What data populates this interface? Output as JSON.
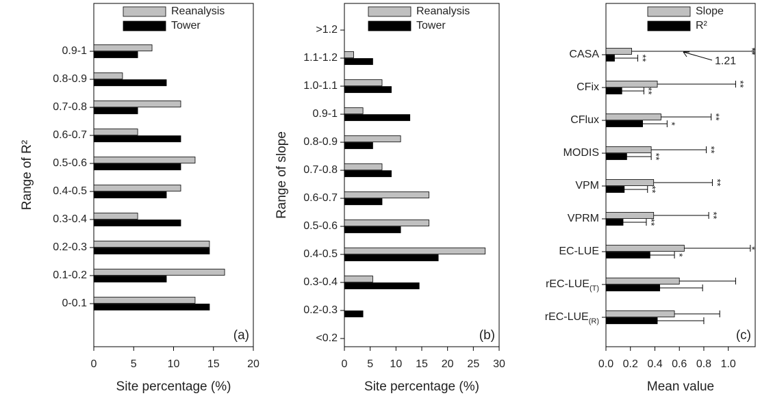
{
  "chart_data": [
    {
      "type": "bar",
      "orientation": "horizontal",
      "panel_label": "(a)",
      "xlabel": "Site percentage (%)",
      "ylabel": "Range of R²",
      "categories": [
        "0-0.1",
        "0.1-0.2",
        "0.2-0.3",
        "0.3-0.4",
        "0.4-0.5",
        "0.5-0.6",
        "0.6-0.7",
        "0.7-0.8",
        "0.8-0.9",
        "0.9-1"
      ],
      "series": [
        {
          "name": "Tower",
          "color": "#000000",
          "values": [
            14.5,
            9.1,
            14.5,
            10.9,
            9.1,
            10.9,
            10.9,
            5.5,
            9.1,
            5.5
          ]
        },
        {
          "name": "Reanalysis",
          "color": "#c0c0c0",
          "values": [
            12.7,
            16.4,
            14.5,
            5.5,
            10.9,
            12.7,
            5.5,
            10.9,
            3.6,
            7.3
          ]
        }
      ],
      "xlim": [
        0,
        20
      ],
      "xticks": [
        0,
        5,
        10,
        15,
        20
      ],
      "legend": "upper right"
    },
    {
      "type": "bar",
      "orientation": "horizontal",
      "panel_label": "(b)",
      "xlabel": "Site percentage (%)",
      "ylabel": "Range of slope",
      "categories": [
        "<0.2",
        "0.2-0.3",
        "0.3-0.4",
        "0.4-0.5",
        "0.5-0.6",
        "0.6-0.7",
        "0.7-0.8",
        "0.8-0.9",
        "0.9-1",
        "1.0-1.1",
        "1.1-1.2",
        ">1.2"
      ],
      "series": [
        {
          "name": "Tower",
          "color": "#000000",
          "values": [
            0,
            3.6,
            14.5,
            18.2,
            10.9,
            7.3,
            9.1,
            5.5,
            12.7,
            9.1,
            5.5,
            0
          ]
        },
        {
          "name": "Reanalysis",
          "color": "#c0c0c0",
          "values": [
            0,
            0,
            5.5,
            27.3,
            16.4,
            16.4,
            7.3,
            10.9,
            3.6,
            7.3,
            1.8,
            0
          ]
        }
      ],
      "xlim": [
        0,
        30
      ],
      "xticks": [
        0,
        5,
        10,
        15,
        20,
        25,
        30
      ],
      "legend": "upper right"
    },
    {
      "type": "bar",
      "orientation": "horizontal",
      "panel_label": "(c)",
      "xlabel": "Mean value",
      "categories": [
        "CASA",
        "CFix",
        "CFlux",
        "MODIS",
        "VPM",
        "VPRM",
        "EC-LUE",
        "rEC-LUE(T)",
        "rEC-LUE(R)"
      ],
      "series": [
        {
          "name": "R²",
          "color": "#000000",
          "values": [
            0.07,
            0.13,
            0.3,
            0.17,
            0.15,
            0.14,
            0.36,
            0.44,
            0.42
          ],
          "errors": [
            0.19,
            0.18,
            0.2,
            0.2,
            0.19,
            0.19,
            0.2,
            0.35,
            0.38
          ],
          "significance": [
            "**",
            "**",
            "*",
            "**",
            "**",
            "**",
            "*",
            null,
            null
          ]
        },
        {
          "name": "Slope",
          "color": "#c0c0c0",
          "values": [
            0.21,
            0.42,
            0.45,
            0.37,
            0.39,
            0.39,
            0.64,
            0.6,
            0.56
          ],
          "errors": [
            1.0,
            0.64,
            0.41,
            0.45,
            0.48,
            0.45,
            0.54,
            0.46,
            0.37
          ],
          "significance": [
            "**",
            "**",
            "**",
            "**",
            "**",
            "**",
            "*",
            null,
            null
          ]
        }
      ],
      "annotation": "1.21",
      "xlim": [
        0,
        1.22
      ],
      "xticks": [
        {
          "value": 0,
          "label": "0.0"
        },
        0.2,
        0.4,
        0.6,
        0.8,
        {
          "value": 1,
          "label": "1.0"
        }
      ],
      "legend": "upper right"
    }
  ]
}
